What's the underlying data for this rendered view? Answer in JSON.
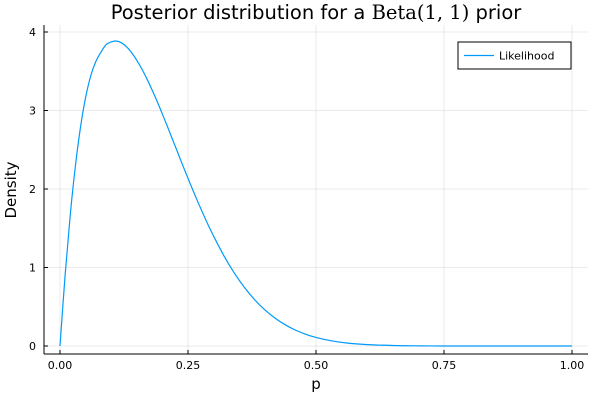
{
  "chart_data": {
    "type": "line",
    "title": {
      "prefix": "Posterior distribution for a ",
      "math": "Beta(1, 1)",
      "suffix": " prior"
    },
    "xlabel": "p",
    "ylabel": "Density",
    "xlim": [
      0,
      1
    ],
    "ylim": [
      0,
      4
    ],
    "xticks": [
      {
        "value": 0,
        "label": "0.00"
      },
      {
        "value": 0.25,
        "label": "0.25"
      },
      {
        "value": 0.5,
        "label": "0.50"
      },
      {
        "value": 0.75,
        "label": "0.75"
      },
      {
        "value": 1,
        "label": "1.00"
      }
    ],
    "yticks": [
      {
        "value": 0,
        "label": "0"
      },
      {
        "value": 1,
        "label": "1"
      },
      {
        "value": 2,
        "label": "2"
      },
      {
        "value": 3,
        "label": "3"
      },
      {
        "value": 4,
        "label": "4"
      }
    ],
    "grid": true,
    "legend_position": "top-right",
    "series": [
      {
        "name": "Likelihood",
        "color": "#009AFA",
        "x": [
          0,
          0.01,
          0.02,
          0.03,
          0.04,
          0.05,
          0.06,
          0.07,
          0.08,
          0.09,
          0.1,
          0.11,
          0.12,
          0.13,
          0.14,
          0.15,
          0.16,
          0.17,
          0.18,
          0.19,
          0.2,
          0.21,
          0.22,
          0.23,
          0.24,
          0.25,
          0.26,
          0.27,
          0.28,
          0.29,
          0.3,
          0.32,
          0.34,
          0.36,
          0.38,
          0.4,
          0.42,
          0.44,
          0.46,
          0.48,
          0.5,
          0.53,
          0.56,
          0.6,
          0.65,
          0.7,
          0.75,
          0.8,
          0.85,
          0.9,
          0.95,
          1
        ],
        "y": [
          0,
          0.904,
          1.668,
          2.29,
          2.785,
          3.165,
          3.441,
          3.624,
          3.743,
          3.838,
          3.874,
          3.885,
          3.862,
          3.811,
          3.736,
          3.64,
          3.527,
          3.399,
          3.259,
          3.111,
          2.953,
          2.793,
          2.627,
          2.463,
          2.297,
          2.136,
          1.978,
          1.824,
          1.676,
          1.534,
          1.4,
          1.151,
          0.934,
          0.748,
          0.591,
          0.461,
          0.355,
          0.27,
          0.202,
          0.149,
          0.109,
          0.066,
          0.038,
          0.018,
          0.0065,
          0.0019,
          0.0004,
          8e-05,
          1e-05,
          0,
          0,
          0
        ]
      }
    ]
  }
}
